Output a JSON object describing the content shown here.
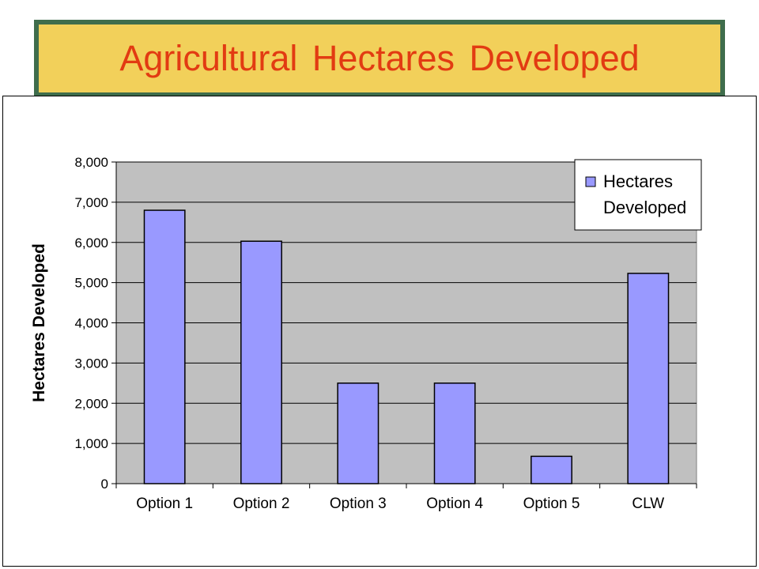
{
  "title": "Agricultural Hectares Developed",
  "colors": {
    "banner_bg": "#f2d05a",
    "banner_border": "#3f6d4c",
    "title_text": "#e23b12",
    "plot_bg": "#c0c0c0",
    "bar_fill": "#9999ff"
  },
  "chart_data": {
    "type": "bar",
    "categories": [
      "Option 1",
      "Option 2",
      "Option 3",
      "Option 4",
      "Option 5",
      "CLW"
    ],
    "series": [
      {
        "name": "Hectares Developed",
        "values": [
          6800,
          6030,
          2500,
          2500,
          680,
          5230
        ]
      }
    ],
    "ylabel": "Hectares Developed",
    "xlabel": "",
    "ylim": [
      0,
      8000
    ],
    "yticks": [
      "0",
      "1,000",
      "2,000",
      "3,000",
      "4,000",
      "5,000",
      "6,000",
      "7,000",
      "8,000"
    ],
    "grid": true,
    "legend": {
      "position": "top-right",
      "lines": [
        "Hectares",
        "Developed"
      ]
    }
  }
}
